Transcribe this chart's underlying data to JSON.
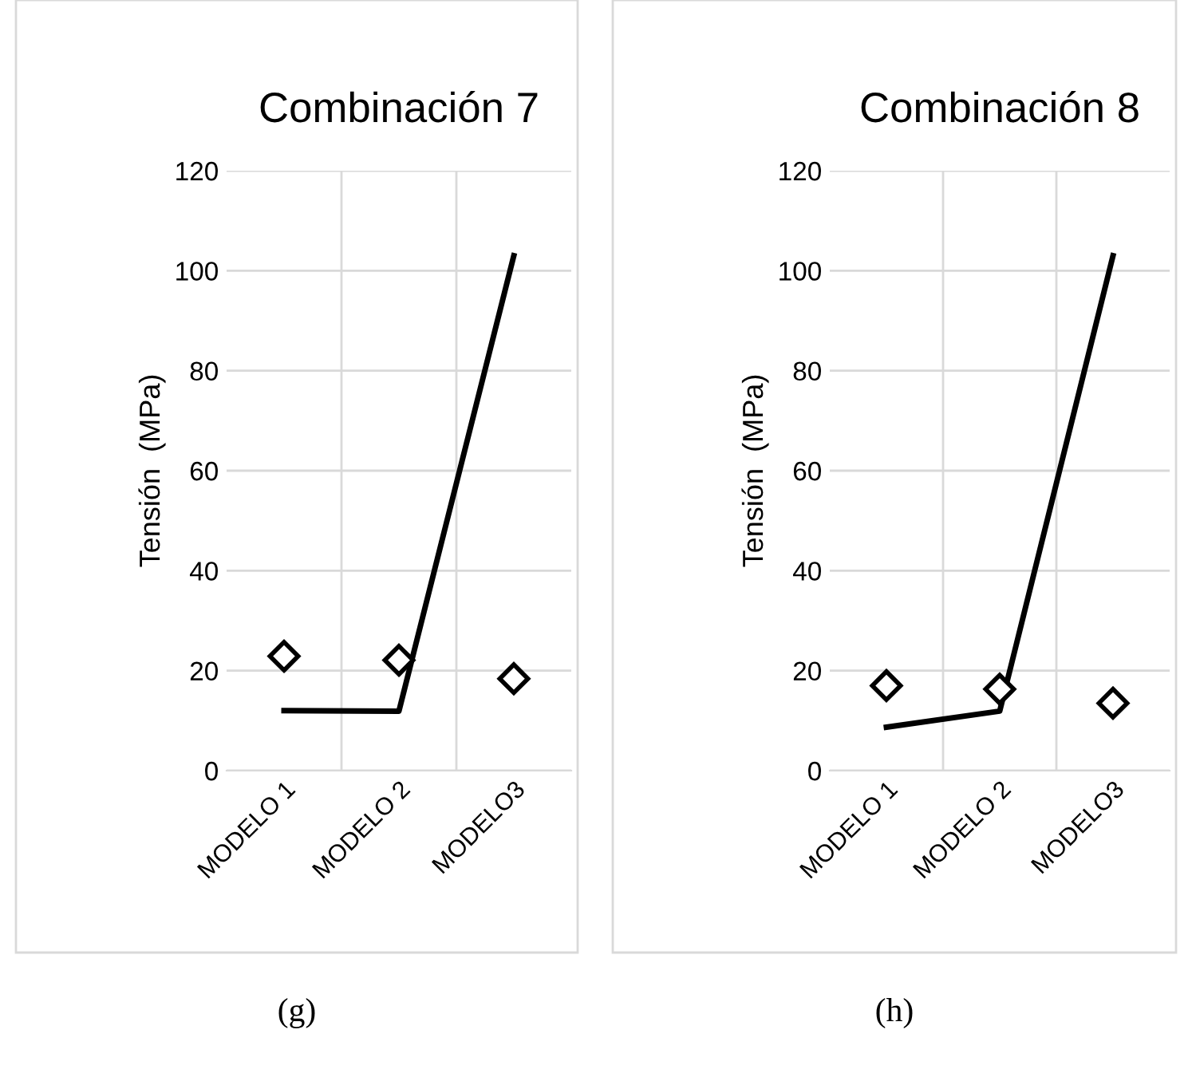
{
  "chart_data": [
    {
      "type": "line",
      "title": "Combinación 7",
      "ylabel": "Tensión  (MPa)",
      "categories": [
        "MODELO 1",
        "MODELO 2",
        "MODELO3"
      ],
      "ylim": [
        0,
        120
      ],
      "yticks": [
        0,
        20,
        40,
        60,
        80,
        100,
        120
      ],
      "grid": true,
      "legend": false,
      "series": [
        {
          "color": "#000000",
          "marker": "none",
          "line_style": "solid",
          "values": [
            12,
            11.9,
            103
          ]
        },
        {
          "type": "scatter",
          "color": "#000000",
          "marker": "diamond",
          "values": [
            22.9,
            22.1,
            18.4
          ]
        }
      ],
      "annotations": [
        "(g)"
      ]
    },
    {
      "type": "line",
      "title": "Combinación 8",
      "ylabel": "Tensión  (MPa)",
      "categories": [
        "MODELO 1",
        "MODELO 2",
        "MODELO3"
      ],
      "ylim": [
        0,
        120
      ],
      "yticks": [
        0,
        20,
        40,
        60,
        80,
        100,
        120
      ],
      "grid": true,
      "legend": false,
      "series": [
        {
          "color": "#000000",
          "marker": "none",
          "line_style": "solid",
          "values": [
            8.7,
            11.9,
            103
          ]
        },
        {
          "type": "scatter",
          "color": "#000000",
          "marker": "diamond",
          "values": [
            17.0,
            16.3,
            13.5
          ]
        }
      ],
      "annotations": [
        "(h)"
      ]
    }
  ]
}
